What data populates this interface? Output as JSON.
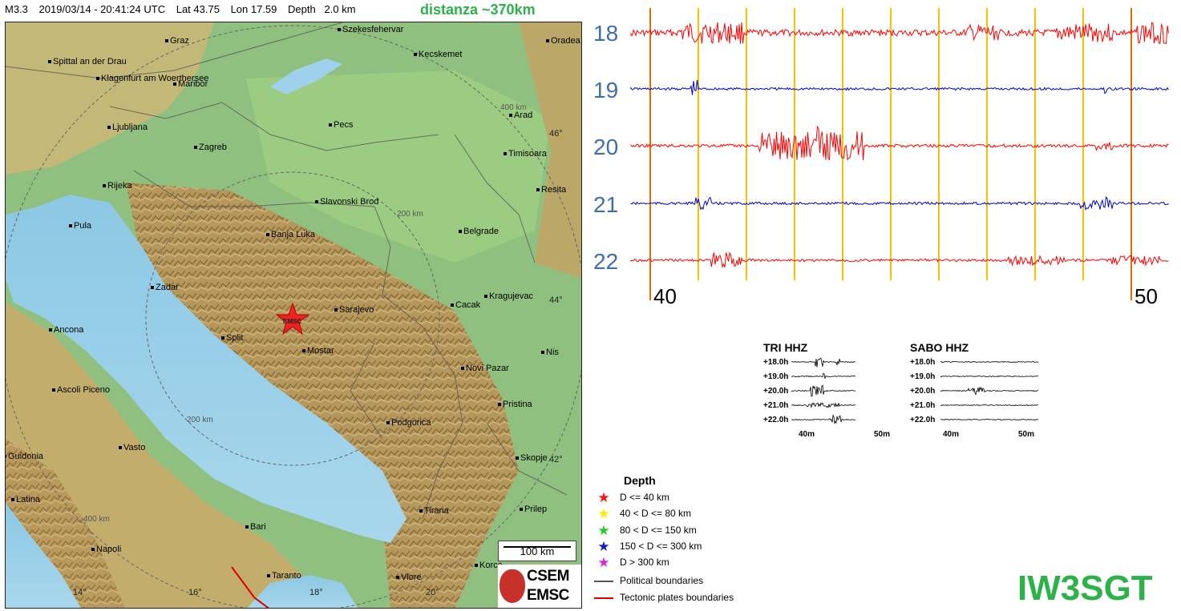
{
  "header": {
    "mag": "M3.3",
    "datetime": "2019/03/14 - 20:41:24 UTC",
    "lat": "Lat 43.75",
    "lon": "Lon 17.59",
    "depth": "Depth   2.0 km",
    "distance": "distanza ~370km"
  },
  "map": {
    "cities": [
      {
        "name": "Graz",
        "k": "graz"
      },
      {
        "name": "Szekesfehervar",
        "k": "szekes"
      },
      {
        "name": "Oradea",
        "k": "oradea"
      },
      {
        "name": "Spittal an der Drau",
        "k": "spittal"
      },
      {
        "name": "Kecskemet",
        "k": "kecskemet"
      },
      {
        "name": "Klagenfurt am Woerthersee",
        "k": "klagenfurt"
      },
      {
        "name": "Maribor",
        "k": "maribor"
      },
      {
        "name": "Arad",
        "k": "arad"
      },
      {
        "name": "Ljubljana",
        "k": "ljubljana"
      },
      {
        "name": "Pecs",
        "k": "pecs"
      },
      {
        "name": "Zagreb",
        "k": "zagreb"
      },
      {
        "name": "Timisoara",
        "k": "timisoara"
      },
      {
        "name": "Rijeka",
        "k": "rijeka"
      },
      {
        "name": "Resita",
        "k": "resita"
      },
      {
        "name": "Slavonski Brod",
        "k": "slavonski"
      },
      {
        "name": "Pula",
        "k": "pula"
      },
      {
        "name": "Banja Luka",
        "k": "banjaluka"
      },
      {
        "name": "Belgrade",
        "k": "belgrade"
      },
      {
        "name": "Zadar",
        "k": "zadar"
      },
      {
        "name": "Kragujevac",
        "k": "kragujevac"
      },
      {
        "name": "Cacak",
        "k": "cacak"
      },
      {
        "name": "Sarajevo",
        "k": "sarajevo"
      },
      {
        "name": "Ancona",
        "k": "ancona"
      },
      {
        "name": "Split",
        "k": "split"
      },
      {
        "name": "Mostar",
        "k": "mostar"
      },
      {
        "name": "Nis",
        "k": "nis"
      },
      {
        "name": "Novi Pazar",
        "k": "novipazar"
      },
      {
        "name": "Ascoli Piceno",
        "k": "ascoli"
      },
      {
        "name": "Pristina",
        "k": "pristina"
      },
      {
        "name": "Podgorica",
        "k": "podgorica"
      },
      {
        "name": "Vasto",
        "k": "vasto"
      },
      {
        "name": "Guidonia",
        "k": "guidonia"
      },
      {
        "name": "Skopje",
        "k": "skopje"
      },
      {
        "name": "Latina",
        "k": "latina"
      },
      {
        "name": "Tirana",
        "k": "tirana"
      },
      {
        "name": "Prilep",
        "k": "prilep"
      },
      {
        "name": "Bari",
        "k": "bari"
      },
      {
        "name": "Napoli",
        "k": "napoli"
      },
      {
        "name": "Korce",
        "k": "korce"
      },
      {
        "name": "Taranto",
        "k": "taranto"
      },
      {
        "name": "Vlore",
        "k": "vlore"
      }
    ],
    "lat_labels": [
      "46°",
      "44°",
      "42°"
    ],
    "lon_labels": [
      "14°",
      "16°",
      "18°",
      "20°"
    ],
    "ring_labels": [
      "400 km",
      "200 km",
      "200 km",
      "400 km"
    ],
    "epicenter_label": "EMSC",
    "scale": "100 km",
    "logo_top": "CSEM",
    "logo_bottom": "EMSC"
  },
  "seismogram": {
    "hours": [
      "18",
      "19",
      "20",
      "21",
      "22"
    ],
    "minute_start": "40",
    "minute_end": "50",
    "trace_colors": [
      "#ff0000",
      "#0000cc",
      "#ff0000",
      "#0000cc",
      "#ff0000"
    ]
  },
  "mini_plots": [
    {
      "title": "TRI HHZ",
      "rows": [
        "+18.0h",
        "+19.0h",
        "+20.0h",
        "+21.0h",
        "+22.0h"
      ],
      "x_start": "40m",
      "x_end": "50m"
    },
    {
      "title": "SABO HHZ",
      "rows": [
        "+18.0h",
        "+19.0h",
        "+20.0h",
        "+21.0h",
        "+22.0h"
      ],
      "x_start": "40m",
      "x_end": "50m"
    }
  ],
  "legend": {
    "title": "Depth",
    "items": [
      {
        "label": "D <= 40 km",
        "color": "#ff1010",
        "icon": "star"
      },
      {
        "label": "40 < D <= 80 km",
        "color": "#f4f000",
        "icon": "star"
      },
      {
        "label": "80 < D <= 150 km",
        "color": "#22cc22",
        "icon": "star"
      },
      {
        "label": "150 < D <= 300 km",
        "color": "#1a1acc",
        "icon": "star"
      },
      {
        "label": "D > 300 km",
        "color": "#dd22dd",
        "icon": "star"
      },
      {
        "label": "Political boundaries",
        "color": "#555555",
        "icon": "line"
      },
      {
        "label": "Tectonic plates boundaries",
        "color": "#dd0000",
        "icon": "line"
      }
    ]
  },
  "callsign": "IW3SGT"
}
